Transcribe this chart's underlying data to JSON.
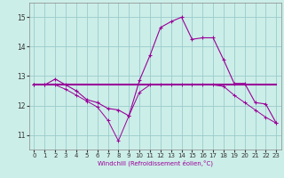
{
  "xlabel": "Windchill (Refroidissement éolien,°C)",
  "background_color": "#cceee8",
  "grid_color": "#99cccc",
  "line_color": "#990099",
  "xlim_min": -0.5,
  "xlim_max": 23.5,
  "ylim_min": 10.5,
  "ylim_max": 15.5,
  "xticks": [
    0,
    1,
    2,
    3,
    4,
    5,
    6,
    7,
    8,
    9,
    10,
    11,
    12,
    13,
    14,
    15,
    16,
    17,
    18,
    19,
    20,
    21,
    22,
    23
  ],
  "yticks": [
    11,
    12,
    13,
    14,
    15
  ],
  "series1_x": [
    0,
    1,
    2,
    3,
    4,
    5,
    6,
    7,
    8,
    9,
    10,
    11,
    12,
    13,
    14,
    15,
    16,
    17,
    18,
    19,
    20,
    21,
    22,
    23
  ],
  "series1_y": [
    12.7,
    12.7,
    12.9,
    12.7,
    12.5,
    12.2,
    12.1,
    11.9,
    11.85,
    11.65,
    12.85,
    13.7,
    14.65,
    14.85,
    15.0,
    14.25,
    14.3,
    14.3,
    13.55,
    12.75,
    12.75,
    12.1,
    12.05,
    11.4
  ],
  "series2_x": [
    0,
    1,
    2,
    3,
    4,
    5,
    6,
    7,
    8,
    9,
    10,
    11,
    12,
    13,
    14,
    15,
    16,
    17,
    18,
    19,
    20,
    21,
    22,
    23
  ],
  "series2_y": [
    12.7,
    12.7,
    12.7,
    12.7,
    12.7,
    12.7,
    12.7,
    12.7,
    12.7,
    12.7,
    12.7,
    12.7,
    12.7,
    12.7,
    12.7,
    12.7,
    12.7,
    12.7,
    12.7,
    12.7,
    12.7,
    12.7,
    12.7,
    12.7
  ],
  "series3_x": [
    0,
    1,
    2,
    3,
    4,
    5,
    6,
    7,
    8,
    9,
    10,
    11,
    12,
    13,
    14,
    15,
    16,
    17,
    18,
    19,
    20,
    21,
    22,
    23
  ],
  "series3_y": [
    12.7,
    12.7,
    12.7,
    12.55,
    12.35,
    12.15,
    11.95,
    11.5,
    10.8,
    11.65,
    12.45,
    12.7,
    12.7,
    12.7,
    12.7,
    12.7,
    12.7,
    12.7,
    12.65,
    12.35,
    12.1,
    11.85,
    11.6,
    11.4
  ],
  "tick_fontsize": 5.0,
  "xlabel_fontsize": 5.0
}
